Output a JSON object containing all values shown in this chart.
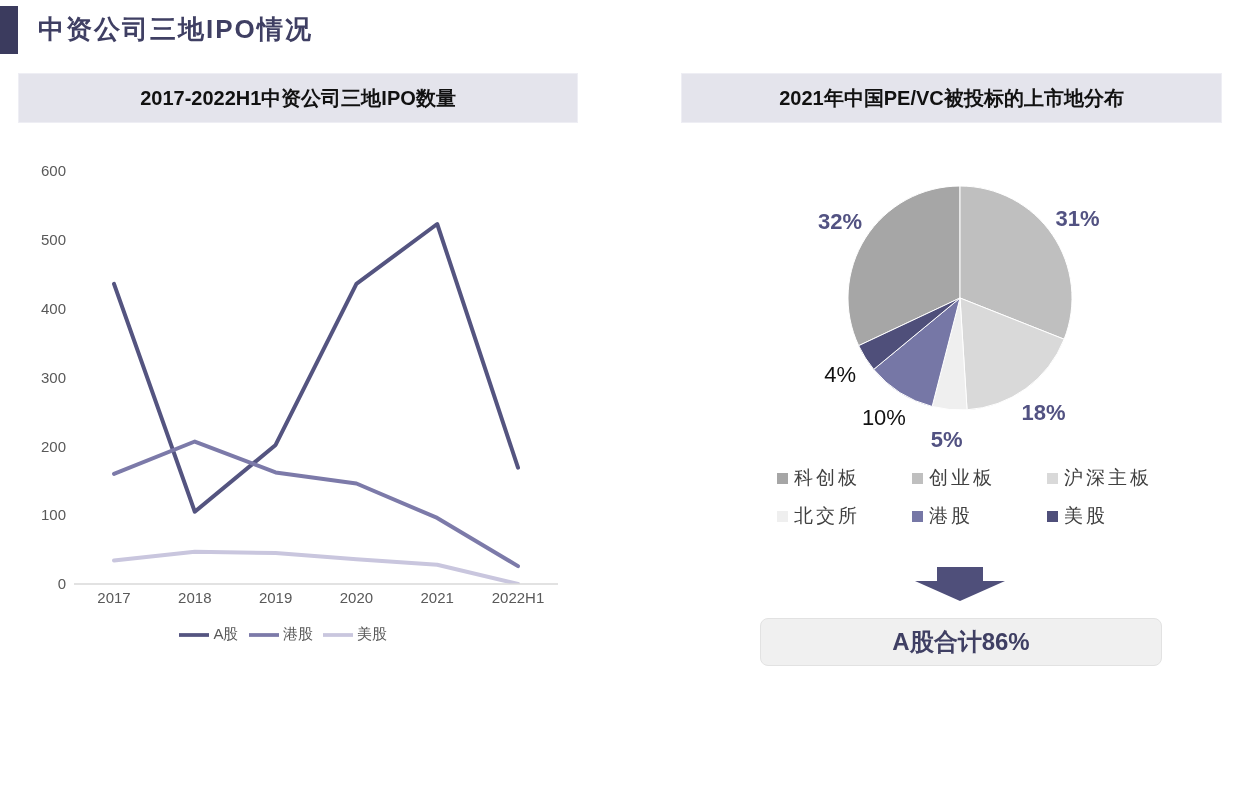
{
  "chart_data": [
    {
      "type": "line",
      "title": "2017-2022H1中资公司三地IPO数量",
      "annotations": [
        "中资公司三地IPO情况"
      ],
      "categories": [
        "2017",
        "2018",
        "2019",
        "2020",
        "2021",
        "2022H1"
      ],
      "series": [
        {
          "name": "A股",
          "color": "#545480",
          "values": [
            436,
            105,
            202,
            436,
            523,
            169
          ]
        },
        {
          "name": "港股",
          "color": "#7c7aa9",
          "values": [
            160,
            207,
            162,
            146,
            96,
            26
          ]
        },
        {
          "name": "美股",
          "color": "#c9c6de",
          "values": [
            34,
            47,
            45,
            36,
            28,
            0
          ]
        }
      ],
      "ylim": [
        0,
        600
      ],
      "yticks": [
        0,
        100,
        200,
        300,
        400,
        500,
        600
      ],
      "legend": "bottom",
      "marker": "none",
      "line_style": "solid"
    },
    {
      "type": "pie",
      "title": "2021年中国PE/VC被投标的上市地分布",
      "categories": [
        "科创板",
        "创业板",
        "沪深主板",
        "北交所",
        "港股",
        "美股"
      ],
      "values": [
        32,
        31,
        18,
        5,
        10,
        4
      ],
      "colors": [
        "#a6a6a6",
        "#bfbfbf",
        "#d9d9d9",
        "#efefef",
        "#7677a6",
        "#4f4f7a"
      ],
      "value_labels": [
        "32%",
        "31%",
        "18%",
        "5%",
        "10%",
        "4%"
      ],
      "legend": "bottom",
      "annotations": [
        "A股合计86%"
      ]
    }
  ]
}
